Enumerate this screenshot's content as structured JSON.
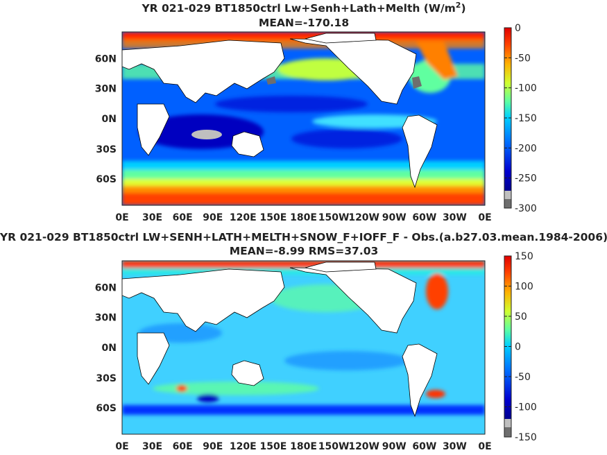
{
  "chart_data": [
    {
      "type": "heatmap",
      "title": "YR 021-029 BT1850ctrl Lw+Senh+Lath+Melth (W/m",
      "title_superscript": "2",
      "title_suffix": ")",
      "subtitle": "MEAN=-170.18",
      "x_tick_labels": [
        "0E",
        "30E",
        "60E",
        "90E",
        "120E",
        "150E",
        "180E",
        "150W",
        "120W",
        "90W",
        "60W",
        "30W",
        "0E"
      ],
      "y_tick_labels": [
        "60N",
        "30N",
        "0N",
        "30S",
        "60S"
      ],
      "colorbar": {
        "min": -300,
        "max": 0,
        "tick_values": [
          0,
          -50,
          -100,
          -150,
          -200,
          -250,
          -300
        ],
        "tick_labels": [
          "0",
          "-50",
          "-100",
          "-150",
          "-200",
          "-250",
          "-300"
        ]
      },
      "mean": -170.18
    },
    {
      "type": "heatmap",
      "title": "YR 021-029 BT1850ctrl LW+SENH+LATH+MELTH+SNOW_F+IOFF_F - Obs.(a.b27.03.mean.1984-2006)",
      "subtitle": "MEAN=-8.99 RMS=37.03",
      "x_tick_labels": [
        "0E",
        "30E",
        "60E",
        "90E",
        "120E",
        "150E",
        "180E",
        "150W",
        "120W",
        "90W",
        "60W",
        "30W",
        "0E"
      ],
      "y_tick_labels": [
        "60N",
        "30N",
        "0N",
        "30S",
        "60S"
      ],
      "colorbar": {
        "min": -150,
        "max": 150,
        "tick_values": [
          150,
          100,
          50,
          0,
          -50,
          -100,
          -150
        ],
        "tick_labels": [
          "150",
          "100",
          "50",
          "0",
          "-50",
          "-100",
          "-150"
        ]
      },
      "mean": -8.99,
      "rms": 37.03
    }
  ],
  "colors": {
    "jet": [
      "#00008f",
      "#0000d0",
      "#0030ff",
      "#0080ff",
      "#00c8ff",
      "#20f0e0",
      "#80ff80",
      "#d0ff30",
      "#ffe000",
      "#ff9000",
      "#ff4000",
      "#e00000"
    ],
    "land": "#ffffff",
    "missing_light": "#bfbfbf",
    "missing_dark": "#6e6e6e"
  }
}
